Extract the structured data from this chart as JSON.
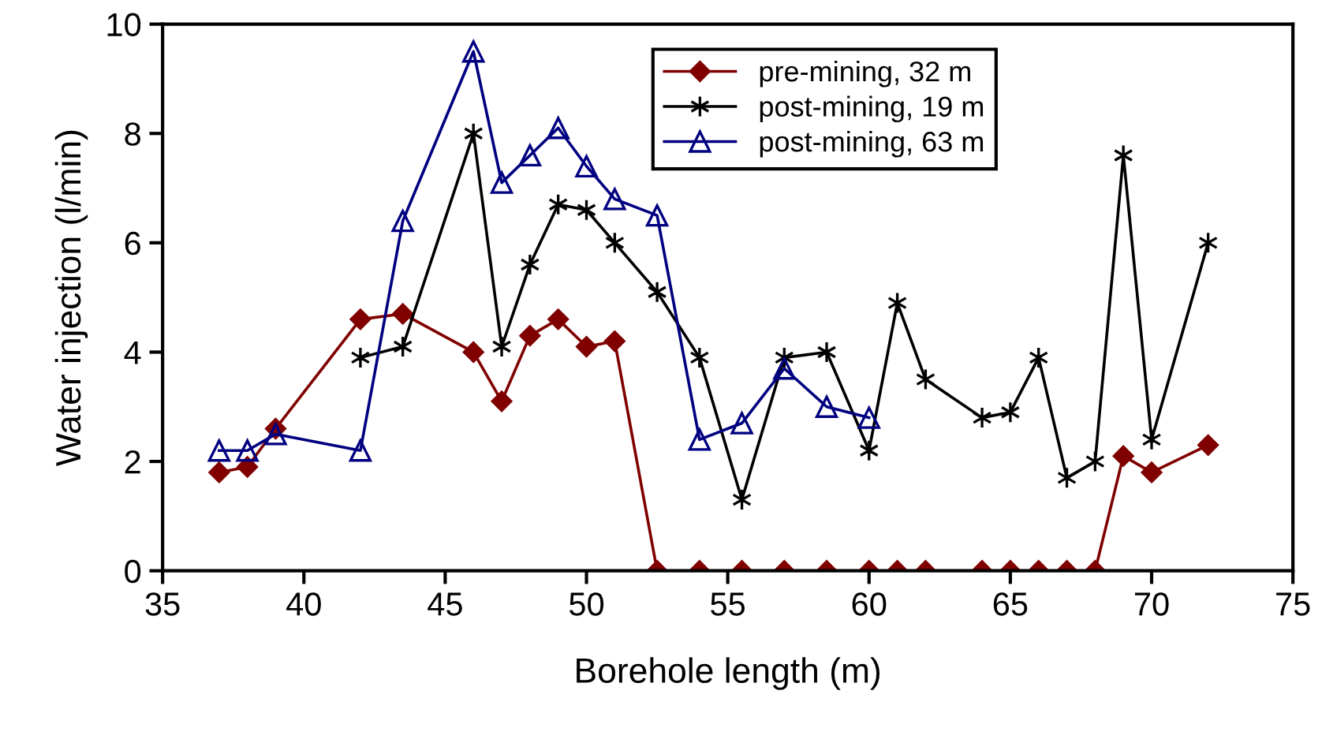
{
  "chart_data": {
    "type": "line",
    "xlabel": "Borehole length (m)",
    "ylabel": "Water injection (l/min)",
    "xlim": [
      35,
      75
    ],
    "xticks": [
      35,
      40,
      45,
      50,
      55,
      60,
      65,
      70,
      75
    ],
    "ylim": [
      0,
      10
    ],
    "yticks": [
      0,
      2,
      4,
      6,
      8,
      10
    ],
    "grid": false,
    "legend": "top right",
    "series": [
      {
        "name": "pre-mining, 32 m",
        "color": "#800000",
        "marker": "diamond",
        "x": [
          37,
          38,
          39,
          42,
          43.5,
          46,
          47,
          48,
          49,
          50,
          51,
          52.5,
          54,
          55.5,
          57,
          58.5,
          60,
          61,
          62,
          64,
          65,
          66,
          67,
          68,
          69,
          70,
          72
        ],
        "values": [
          1.8,
          1.9,
          2.6,
          4.6,
          4.7,
          4.0,
          3.1,
          4.3,
          4.6,
          4.1,
          4.2,
          0,
          0,
          0,
          0,
          0,
          0,
          0,
          0,
          0,
          0,
          0,
          0,
          0,
          2.1,
          1.8,
          2.3
        ]
      },
      {
        "name": "post-mining, 19 m",
        "color": "#000000",
        "marker": "cross",
        "x": [
          42,
          43.5,
          46,
          47,
          48,
          49,
          50,
          51,
          52.5,
          54,
          55.5,
          57,
          58.5,
          60,
          61,
          62,
          64,
          65,
          66,
          67,
          68,
          69,
          70,
          72
        ],
        "values": [
          3.9,
          4.1,
          8.0,
          4.1,
          5.6,
          6.7,
          6.6,
          6.0,
          5.1,
          3.9,
          1.3,
          3.9,
          4.0,
          2.2,
          4.9,
          3.5,
          2.8,
          2.9,
          3.9,
          1.7,
          2.0,
          7.6,
          2.4,
          6.0
        ]
      },
      {
        "name": "post-mining, 63 m",
        "color": "#000080",
        "marker": "triangle",
        "x": [
          37,
          38,
          39,
          42,
          43.5,
          46,
          47,
          48,
          49,
          50,
          51,
          52.5,
          54,
          55.5,
          57,
          58.5,
          60
        ],
        "values": [
          2.2,
          2.2,
          2.5,
          2.2,
          6.4,
          9.5,
          7.1,
          7.6,
          8.1,
          7.4,
          6.8,
          6.5,
          2.4,
          2.7,
          3.7,
          3.0,
          2.8
        ]
      }
    ]
  }
}
